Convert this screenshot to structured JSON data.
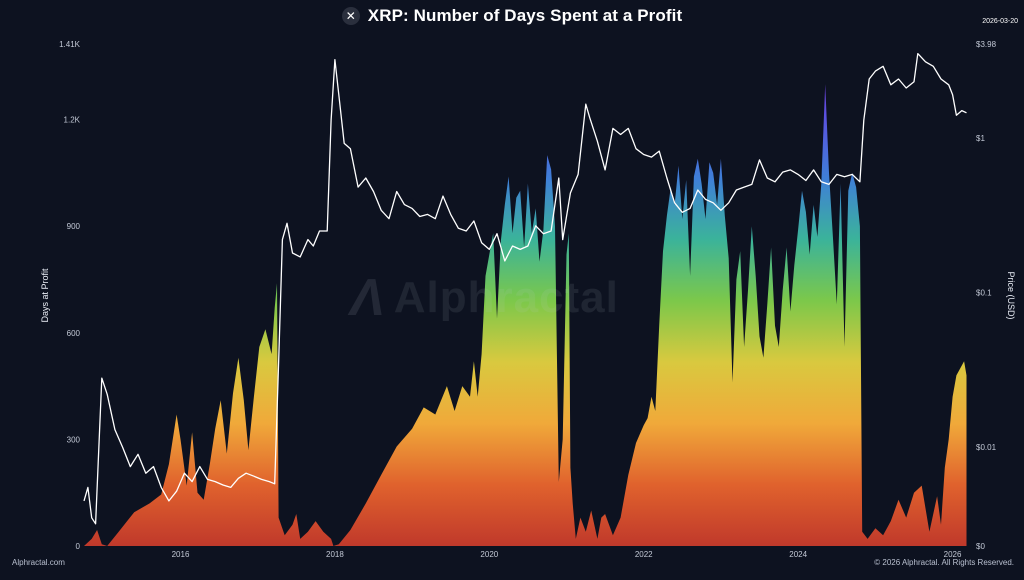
{
  "header": {
    "title": "XRP: Number of Days Spent at a Profit",
    "logo_icon": "x-logo-icon",
    "date": "2026-03-20"
  },
  "footer": {
    "left": "Alphractal.com",
    "right": "© 2026 Alphractal. All Rights Reserved."
  },
  "watermark": "Alphractal",
  "chart_data": {
    "type": "area",
    "xlabel": "",
    "x_ticks": [
      "2016",
      "2018",
      "2020",
      "2022",
      "2024",
      "2026"
    ],
    "x_range": [
      2014.75,
      2026.2
    ],
    "y_left": {
      "label": "Days at Profit",
      "range": [
        0,
        1410
      ],
      "ticks": [
        0,
        300,
        600,
        900,
        1200
      ],
      "tick_labels": [
        "0",
        "300",
        "600",
        "900",
        "1.2K"
      ],
      "top_label": "1.41K"
    },
    "y_right": {
      "label": "Price (USD)",
      "scale": "log",
      "range": [
        0.0023,
        3.98
      ],
      "ticks": [
        0.01,
        0.1,
        1
      ],
      "tick_labels": [
        "$0.01",
        "$0.1",
        "$1"
      ],
      "top_label": "$3.98",
      "bottom_label": "$0"
    },
    "gradient_colors": [
      "#c0392b",
      "#e0622d",
      "#f0a93a",
      "#d9c93f",
      "#7cc84a",
      "#3bb39a",
      "#3f7fd8",
      "#5a52e0",
      "#7b2fd8"
    ],
    "series": [
      {
        "name": "Days at Profit",
        "points": [
          [
            2014.75,
            0
          ],
          [
            2014.85,
            20
          ],
          [
            2014.92,
            45
          ],
          [
            2014.98,
            5
          ],
          [
            2015.05,
            0
          ],
          [
            2015.2,
            40
          ],
          [
            2015.4,
            95
          ],
          [
            2015.6,
            120
          ],
          [
            2015.75,
            145
          ],
          [
            2015.85,
            230
          ],
          [
            2015.95,
            370
          ],
          [
            2016.0,
            300
          ],
          [
            2016.08,
            170
          ],
          [
            2016.15,
            320
          ],
          [
            2016.22,
            150
          ],
          [
            2016.3,
            130
          ],
          [
            2016.38,
            230
          ],
          [
            2016.45,
            330
          ],
          [
            2016.52,
            410
          ],
          [
            2016.6,
            260
          ],
          [
            2016.68,
            430
          ],
          [
            2016.75,
            530
          ],
          [
            2016.82,
            410
          ],
          [
            2016.88,
            270
          ],
          [
            2016.95,
            420
          ],
          [
            2017.02,
            560
          ],
          [
            2017.1,
            610
          ],
          [
            2017.18,
            540
          ],
          [
            2017.22,
            670
          ],
          [
            2017.25,
            740
          ],
          [
            2017.27,
            80
          ],
          [
            2017.35,
            30
          ],
          [
            2017.45,
            60
          ],
          [
            2017.5,
            90
          ],
          [
            2017.55,
            20
          ],
          [
            2017.65,
            40
          ],
          [
            2017.75,
            70
          ],
          [
            2017.85,
            40
          ],
          [
            2017.95,
            20
          ],
          [
            2017.98,
            0
          ],
          [
            2018.05,
            5
          ],
          [
            2018.2,
            45
          ],
          [
            2018.4,
            120
          ],
          [
            2018.6,
            200
          ],
          [
            2018.8,
            280
          ],
          [
            2019.0,
            330
          ],
          [
            2019.15,
            390
          ],
          [
            2019.3,
            370
          ],
          [
            2019.45,
            450
          ],
          [
            2019.55,
            380
          ],
          [
            2019.65,
            450
          ],
          [
            2019.75,
            420
          ],
          [
            2019.8,
            520
          ],
          [
            2019.85,
            420
          ],
          [
            2019.9,
            540
          ],
          [
            2019.95,
            760
          ],
          [
            2020.0,
            820
          ],
          [
            2020.05,
            880
          ],
          [
            2020.1,
            640
          ],
          [
            2020.15,
            860
          ],
          [
            2020.2,
            960
          ],
          [
            2020.25,
            1040
          ],
          [
            2020.3,
            880
          ],
          [
            2020.35,
            980
          ],
          [
            2020.4,
            1000
          ],
          [
            2020.45,
            840
          ],
          [
            2020.5,
            1020
          ],
          [
            2020.55,
            880
          ],
          [
            2020.6,
            950
          ],
          [
            2020.65,
            800
          ],
          [
            2020.7,
            890
          ],
          [
            2020.75,
            1100
          ],
          [
            2020.8,
            1060
          ],
          [
            2020.85,
            900
          ],
          [
            2020.9,
            180
          ],
          [
            2020.95,
            300
          ],
          [
            2021.0,
            820
          ],
          [
            2021.03,
            880
          ],
          [
            2021.05,
            220
          ],
          [
            2021.08,
            120
          ],
          [
            2021.12,
            20
          ],
          [
            2021.18,
            80
          ],
          [
            2021.25,
            40
          ],
          [
            2021.32,
            100
          ],
          [
            2021.4,
            20
          ],
          [
            2021.45,
            80
          ],
          [
            2021.5,
            90
          ],
          [
            2021.6,
            30
          ],
          [
            2021.7,
            80
          ],
          [
            2021.8,
            200
          ],
          [
            2021.9,
            290
          ],
          [
            2022.0,
            340
          ],
          [
            2022.05,
            360
          ],
          [
            2022.1,
            420
          ],
          [
            2022.15,
            380
          ],
          [
            2022.2,
            620
          ],
          [
            2022.25,
            830
          ],
          [
            2022.3,
            930
          ],
          [
            2022.35,
            1010
          ],
          [
            2022.4,
            960
          ],
          [
            2022.45,
            1070
          ],
          [
            2022.5,
            920
          ],
          [
            2022.55,
            1030
          ],
          [
            2022.6,
            760
          ],
          [
            2022.65,
            1040
          ],
          [
            2022.7,
            1090
          ],
          [
            2022.75,
            1020
          ],
          [
            2022.8,
            920
          ],
          [
            2022.85,
            1080
          ],
          [
            2022.9,
            1050
          ],
          [
            2022.95,
            960
          ],
          [
            2023.0,
            1090
          ],
          [
            2023.05,
            930
          ],
          [
            2023.1,
            810
          ],
          [
            2023.15,
            460
          ],
          [
            2023.2,
            750
          ],
          [
            2023.25,
            830
          ],
          [
            2023.3,
            560
          ],
          [
            2023.35,
            720
          ],
          [
            2023.4,
            900
          ],
          [
            2023.45,
            760
          ],
          [
            2023.5,
            590
          ],
          [
            2023.55,
            530
          ],
          [
            2023.6,
            680
          ],
          [
            2023.65,
            840
          ],
          [
            2023.7,
            620
          ],
          [
            2023.75,
            560
          ],
          [
            2023.8,
            720
          ],
          [
            2023.85,
            840
          ],
          [
            2023.9,
            660
          ],
          [
            2023.95,
            790
          ],
          [
            2024.0,
            890
          ],
          [
            2024.05,
            1000
          ],
          [
            2024.1,
            940
          ],
          [
            2024.15,
            820
          ],
          [
            2024.2,
            960
          ],
          [
            2024.25,
            870
          ],
          [
            2024.3,
            1020
          ],
          [
            2024.35,
            1300
          ],
          [
            2024.4,
            1050
          ],
          [
            2024.45,
            870
          ],
          [
            2024.5,
            680
          ],
          [
            2024.55,
            1020
          ],
          [
            2024.6,
            560
          ],
          [
            2024.65,
            1000
          ],
          [
            2024.7,
            1050
          ],
          [
            2024.75,
            1010
          ],
          [
            2024.8,
            900
          ],
          [
            2024.83,
            40
          ],
          [
            2024.9,
            20
          ],
          [
            2025.0,
            50
          ],
          [
            2025.1,
            30
          ],
          [
            2025.2,
            70
          ],
          [
            2025.3,
            130
          ],
          [
            2025.4,
            80
          ],
          [
            2025.5,
            150
          ],
          [
            2025.6,
            170
          ],
          [
            2025.7,
            40
          ],
          [
            2025.8,
            140
          ],
          [
            2025.85,
            60
          ],
          [
            2025.9,
            220
          ],
          [
            2025.95,
            300
          ],
          [
            2026.0,
            420
          ],
          [
            2026.05,
            480
          ],
          [
            2026.1,
            500
          ],
          [
            2026.15,
            520
          ],
          [
            2026.18,
            480
          ]
        ]
      },
      {
        "name": "Price (USD)",
        "points": [
          [
            2014.75,
            0.0045
          ],
          [
            2014.8,
            0.0055
          ],
          [
            2014.85,
            0.0035
          ],
          [
            2014.9,
            0.0032
          ],
          [
            2014.98,
            0.028
          ],
          [
            2015.05,
            0.022
          ],
          [
            2015.15,
            0.013
          ],
          [
            2015.25,
            0.01
          ],
          [
            2015.35,
            0.0075
          ],
          [
            2015.45,
            0.009
          ],
          [
            2015.55,
            0.0068
          ],
          [
            2015.65,
            0.0075
          ],
          [
            2015.75,
            0.0055
          ],
          [
            2015.85,
            0.0045
          ],
          [
            2015.95,
            0.0052
          ],
          [
            2016.05,
            0.0068
          ],
          [
            2016.15,
            0.006
          ],
          [
            2016.25,
            0.0075
          ],
          [
            2016.35,
            0.0062
          ],
          [
            2016.45,
            0.006
          ],
          [
            2016.55,
            0.0057
          ],
          [
            2016.65,
            0.0055
          ],
          [
            2016.75,
            0.0063
          ],
          [
            2016.85,
            0.0068
          ],
          [
            2016.95,
            0.0065
          ],
          [
            2017.05,
            0.0062
          ],
          [
            2017.15,
            0.006
          ],
          [
            2017.22,
            0.0058
          ],
          [
            2017.27,
            0.035
          ],
          [
            2017.32,
            0.22
          ],
          [
            2017.38,
            0.28
          ],
          [
            2017.45,
            0.18
          ],
          [
            2017.55,
            0.17
          ],
          [
            2017.65,
            0.22
          ],
          [
            2017.72,
            0.2
          ],
          [
            2017.8,
            0.25
          ],
          [
            2017.9,
            0.25
          ],
          [
            2017.95,
            1.3
          ],
          [
            2018.0,
            3.2
          ],
          [
            2018.05,
            1.9
          ],
          [
            2018.12,
            0.92
          ],
          [
            2018.2,
            0.85
          ],
          [
            2018.3,
            0.48
          ],
          [
            2018.4,
            0.55
          ],
          [
            2018.5,
            0.45
          ],
          [
            2018.6,
            0.34
          ],
          [
            2018.7,
            0.3
          ],
          [
            2018.8,
            0.45
          ],
          [
            2018.9,
            0.37
          ],
          [
            2019.0,
            0.35
          ],
          [
            2019.1,
            0.31
          ],
          [
            2019.2,
            0.32
          ],
          [
            2019.3,
            0.3
          ],
          [
            2019.4,
            0.42
          ],
          [
            2019.5,
            0.32
          ],
          [
            2019.6,
            0.26
          ],
          [
            2019.7,
            0.25
          ],
          [
            2019.8,
            0.29
          ],
          [
            2019.9,
            0.21
          ],
          [
            2020.0,
            0.19
          ],
          [
            2020.1,
            0.24
          ],
          [
            2020.2,
            0.16
          ],
          [
            2020.3,
            0.2
          ],
          [
            2020.4,
            0.19
          ],
          [
            2020.5,
            0.2
          ],
          [
            2020.6,
            0.27
          ],
          [
            2020.7,
            0.24
          ],
          [
            2020.8,
            0.25
          ],
          [
            2020.9,
            0.55
          ],
          [
            2020.95,
            0.22
          ],
          [
            2021.05,
            0.44
          ],
          [
            2021.15,
            0.58
          ],
          [
            2021.25,
            1.65
          ],
          [
            2021.3,
            1.35
          ],
          [
            2021.4,
            0.95
          ],
          [
            2021.5,
            0.62
          ],
          [
            2021.6,
            1.15
          ],
          [
            2021.7,
            1.05
          ],
          [
            2021.8,
            1.15
          ],
          [
            2021.9,
            0.85
          ],
          [
            2022.0,
            0.78
          ],
          [
            2022.1,
            0.75
          ],
          [
            2022.2,
            0.82
          ],
          [
            2022.3,
            0.55
          ],
          [
            2022.4,
            0.38
          ],
          [
            2022.5,
            0.33
          ],
          [
            2022.6,
            0.35
          ],
          [
            2022.7,
            0.46
          ],
          [
            2022.8,
            0.4
          ],
          [
            2022.9,
            0.38
          ],
          [
            2023.0,
            0.34
          ],
          [
            2023.1,
            0.38
          ],
          [
            2023.2,
            0.46
          ],
          [
            2023.3,
            0.48
          ],
          [
            2023.4,
            0.5
          ],
          [
            2023.5,
            0.72
          ],
          [
            2023.6,
            0.55
          ],
          [
            2023.7,
            0.52
          ],
          [
            2023.8,
            0.6
          ],
          [
            2023.9,
            0.62
          ],
          [
            2024.0,
            0.58
          ],
          [
            2024.1,
            0.53
          ],
          [
            2024.2,
            0.62
          ],
          [
            2024.3,
            0.52
          ],
          [
            2024.4,
            0.5
          ],
          [
            2024.5,
            0.58
          ],
          [
            2024.6,
            0.56
          ],
          [
            2024.7,
            0.58
          ],
          [
            2024.8,
            0.52
          ],
          [
            2024.85,
            1.3
          ],
          [
            2024.92,
            2.4
          ],
          [
            2025.0,
            2.7
          ],
          [
            2025.1,
            2.9
          ],
          [
            2025.2,
            2.2
          ],
          [
            2025.3,
            2.4
          ],
          [
            2025.4,
            2.1
          ],
          [
            2025.5,
            2.3
          ],
          [
            2025.55,
            3.5
          ],
          [
            2025.65,
            3.1
          ],
          [
            2025.75,
            2.9
          ],
          [
            2025.85,
            2.4
          ],
          [
            2025.95,
            2.2
          ],
          [
            2026.0,
            1.9
          ],
          [
            2026.05,
            1.4
          ],
          [
            2026.12,
            1.5
          ],
          [
            2026.18,
            1.45
          ]
        ]
      }
    ]
  }
}
